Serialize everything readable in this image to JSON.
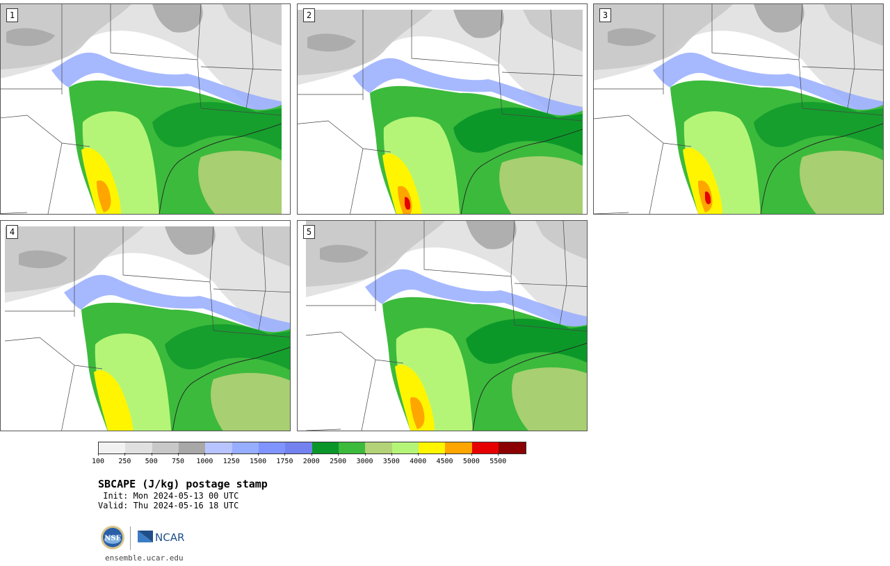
{
  "panels": [
    {
      "label": "1",
      "variant": 1
    },
    {
      "label": "2",
      "variant": 2
    },
    {
      "label": "3",
      "variant": 3
    },
    {
      "label": "4",
      "variant": 4
    },
    {
      "label": "5",
      "variant": 5
    }
  ],
  "colorbar": {
    "colors": [
      "#f2f2f2",
      "#e0e0e0",
      "#c8c8c8",
      "#a8a8a8",
      "#b8c4ff",
      "#97adff",
      "#8094ff",
      "#7482f0",
      "#0a9628",
      "#3cba3c",
      "#b4d278",
      "#b4f578",
      "#fff500",
      "#ffa500",
      "#e60000",
      "#8b0000"
    ],
    "tick_labels": [
      "100",
      "250",
      "500",
      "750",
      "1000",
      "1250",
      "1500",
      "1750",
      "2000",
      "2500",
      "3000",
      "3500",
      "4000",
      "4500",
      "5000",
      "5500"
    ]
  },
  "title": "SBCAPE (J/kg) postage stamp",
  "init": " Init: Mon 2024-05-13 00 UTC",
  "valid": "Valid: Thu 2024-05-16 18 UTC",
  "logos": {
    "nsf": "NSF",
    "ncar": "NCAR"
  },
  "url": "ensemble.ucar.edu"
}
